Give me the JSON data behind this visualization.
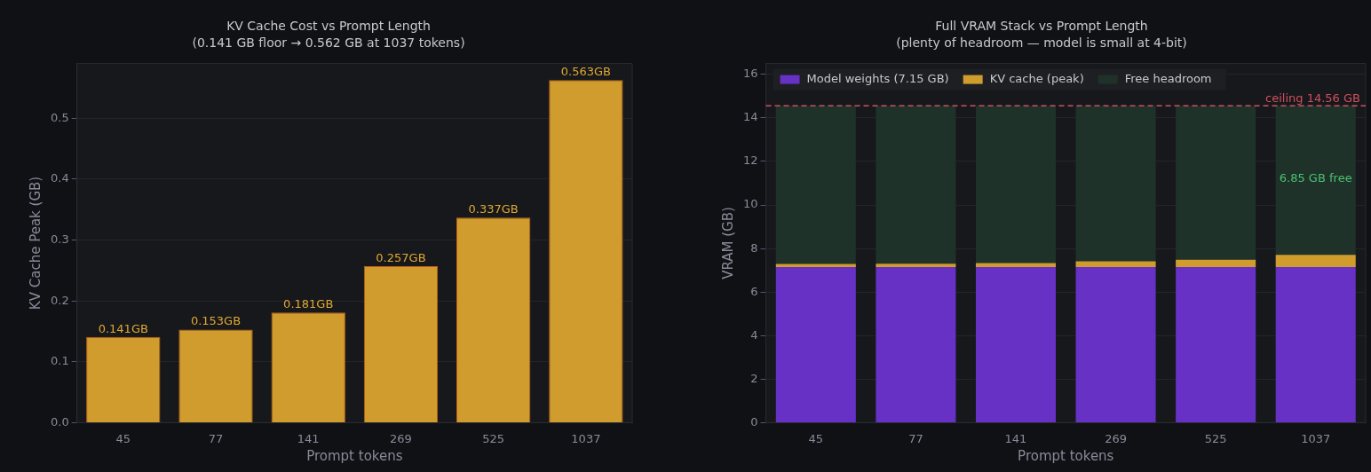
{
  "chart_data": [
    {
      "type": "bar",
      "title": "KV Cache Cost vs Prompt Length",
      "subtitle": "(0.141 GB floor → 0.562 GB at 1037 tokens)",
      "xlabel": "Prompt tokens",
      "ylabel": "KV Cache Peak (GB)",
      "categories": [
        "45",
        "77",
        "141",
        "269",
        "525",
        "1037"
      ],
      "values": [
        0.141,
        0.153,
        0.181,
        0.257,
        0.337,
        0.563
      ],
      "color": "#d09c2e",
      "value_labels": [
        "0.141GB",
        "0.153GB",
        "0.181GB",
        "0.257GB",
        "0.337GB",
        "0.563GB"
      ],
      "ylim": [
        0,
        0.59
      ],
      "yticks": [
        {
          "value": 0,
          "label": "0.0"
        },
        0.1,
        0.2,
        0.3,
        0.4,
        0.5
      ],
      "grid": "y",
      "legend": false
    },
    {
      "type": "bar",
      "title": "Full VRAM Stack vs Prompt Length",
      "subtitle": "(plenty of headroom — model is small at 4-bit)",
      "xlabel": "Prompt tokens",
      "ylabel": "VRAM (GB)",
      "categories": [
        "45",
        "77",
        "141",
        "269",
        "525",
        "1037"
      ],
      "stacked": true,
      "series": [
        {
          "name": "Model weights (7.15 GB)",
          "color": "#6631c4",
          "values": [
            7.15,
            7.15,
            7.15,
            7.15,
            7.15,
            7.15
          ]
        },
        {
          "name": "KV cache (peak)",
          "color": "#d09c2e",
          "values": [
            0.14,
            0.15,
            0.18,
            0.26,
            0.34,
            0.56
          ]
        },
        {
          "name": "Free headroom",
          "color": "#1e3229",
          "values": [
            7.27,
            7.26,
            7.23,
            7.15,
            7.07,
            6.85
          ]
        }
      ],
      "ylim": [
        0,
        16.5
      ],
      "yticks": [
        0,
        2,
        4,
        6,
        8,
        10,
        12,
        14,
        16
      ],
      "grid": "y",
      "legend": "top left",
      "ref_lines": [
        {
          "axis": "y",
          "value": 14.56,
          "label": "ceiling 14.56 GB",
          "color": "#d0505e",
          "line_style": "dashed"
        }
      ],
      "annotations": [
        "6.85 GB free"
      ]
    }
  ]
}
